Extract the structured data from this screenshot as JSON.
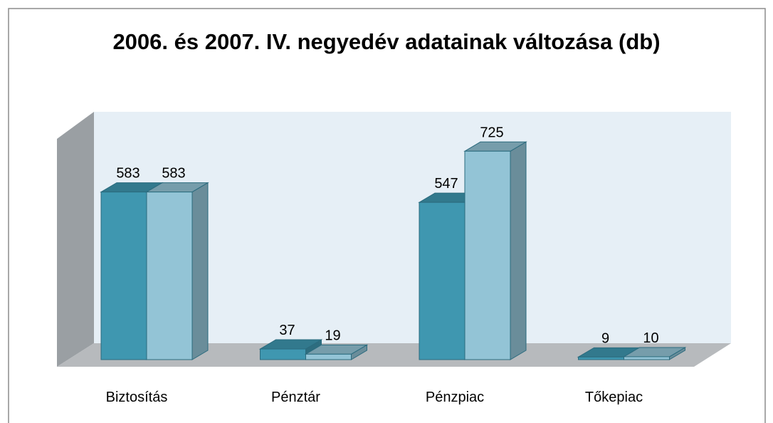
{
  "chart_data": {
    "type": "bar3d",
    "title": "2006. és 2007. IV. negyedév adatainak változása (db)",
    "categories": [
      "Biztosítás",
      "Pénztár",
      "Pénzpiac",
      "Tőkepiac"
    ],
    "series": [
      {
        "color": "#3f97b0",
        "values": [
          583,
          37,
          547,
          9
        ]
      },
      {
        "color": "#93c4d6",
        "values": [
          583,
          19,
          725,
          10
        ]
      }
    ],
    "ylim": [
      0,
      800
    ]
  }
}
